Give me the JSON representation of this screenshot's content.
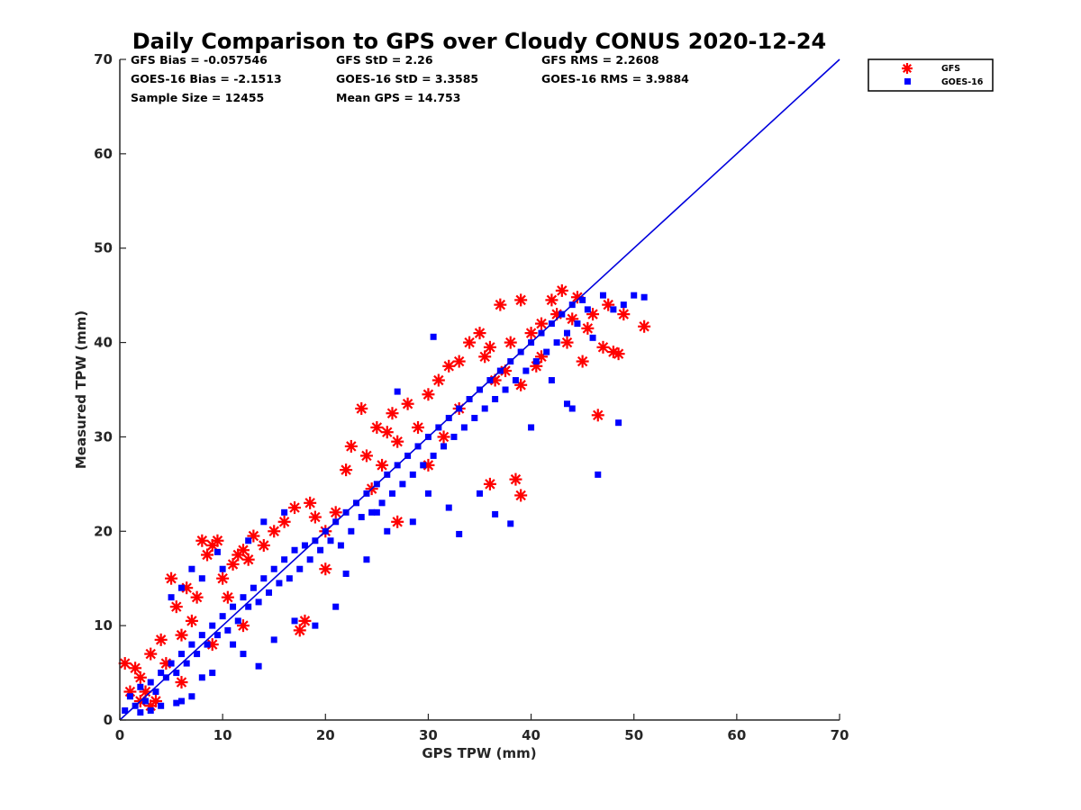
{
  "chart_data": {
    "type": "scatter",
    "title": "Daily Comparison to GPS over Cloudy CONUS 2020-12-24",
    "xlabel": "GPS TPW (mm)",
    "ylabel": "Measured TPW (mm)",
    "xlim": [
      0,
      70
    ],
    "ylim": [
      0,
      70
    ],
    "xticks": [
      "0",
      "10",
      "20",
      "30",
      "40",
      "50",
      "60",
      "70"
    ],
    "yticks": [
      "0",
      "10",
      "20",
      "30",
      "40",
      "50",
      "60",
      "70"
    ],
    "grid": false,
    "legend_position": "outside top-right",
    "stats": [
      "GFS Bias = -0.057546",
      "GFS StD = 2.26",
      "GFS RMS = 2.2608",
      "GOES-16 Bias = -2.1513",
      "GOES-16 StD = 3.3585",
      "GOES-16 RMS = 3.9884",
      "Sample Size = 12455",
      "Mean GPS = 14.753"
    ],
    "reference_line": {
      "x": [
        0,
        70
      ],
      "y": [
        0,
        70
      ],
      "color": "#0000dd"
    },
    "series": [
      {
        "name": "GFS",
        "marker": "asterisk",
        "color": "#ff0000",
        "points": [
          [
            0.5,
            6.0
          ],
          [
            1.0,
            3.0
          ],
          [
            1.5,
            5.5
          ],
          [
            2.0,
            4.5
          ],
          [
            2.5,
            3.0
          ],
          [
            3.0,
            7.0
          ],
          [
            3.5,
            2.0
          ],
          [
            4.0,
            8.5
          ],
          [
            4.5,
            6.0
          ],
          [
            5.0,
            15.0
          ],
          [
            5.5,
            12.0
          ],
          [
            6.0,
            9.0
          ],
          [
            6.5,
            14.0
          ],
          [
            7.0,
            10.5
          ],
          [
            7.5,
            13.0
          ],
          [
            8.0,
            19.0
          ],
          [
            8.5,
            17.5
          ],
          [
            9.0,
            18.5
          ],
          [
            9.5,
            19.0
          ],
          [
            10.0,
            15.0
          ],
          [
            10.5,
            13.0
          ],
          [
            11.0,
            16.5
          ],
          [
            11.5,
            17.5
          ],
          [
            12.0,
            18.0
          ],
          [
            12.5,
            17.0
          ],
          [
            13.0,
            19.5
          ],
          [
            14.0,
            18.5
          ],
          [
            15.0,
            20.0
          ],
          [
            16.0,
            21.0
          ],
          [
            17.0,
            22.5
          ],
          [
            17.5,
            9.5
          ],
          [
            18.0,
            10.5
          ],
          [
            18.5,
            23.0
          ],
          [
            19.0,
            21.5
          ],
          [
            20.0,
            20.0
          ],
          [
            21.0,
            22.0
          ],
          [
            22.0,
            26.5
          ],
          [
            22.5,
            29.0
          ],
          [
            23.5,
            33.0
          ],
          [
            24.0,
            28.0
          ],
          [
            24.5,
            24.5
          ],
          [
            25.0,
            31.0
          ],
          [
            25.5,
            27.0
          ],
          [
            26.0,
            30.5
          ],
          [
            26.5,
            32.5
          ],
          [
            27.0,
            29.5
          ],
          [
            28.0,
            33.5
          ],
          [
            29.0,
            31.0
          ],
          [
            30.0,
            34.5
          ],
          [
            31.0,
            36.0
          ],
          [
            31.5,
            30.0
          ],
          [
            32.0,
            37.5
          ],
          [
            33.0,
            38.0
          ],
          [
            34.0,
            40.0
          ],
          [
            35.0,
            41.0
          ],
          [
            35.5,
            38.5
          ],
          [
            36.0,
            39.5
          ],
          [
            36.5,
            36.0
          ],
          [
            37.0,
            44.0
          ],
          [
            37.5,
            37.0
          ],
          [
            38.0,
            40.0
          ],
          [
            38.5,
            25.5
          ],
          [
            39.0,
            44.5
          ],
          [
            39.0,
            23.8
          ],
          [
            40.0,
            41.0
          ],
          [
            40.5,
            37.5
          ],
          [
            41.0,
            42.0
          ],
          [
            42.0,
            44.5
          ],
          [
            42.5,
            43.0
          ],
          [
            43.0,
            45.5
          ],
          [
            43.5,
            40.0
          ],
          [
            44.0,
            42.5
          ],
          [
            44.5,
            44.8
          ],
          [
            45.0,
            38.0
          ],
          [
            45.5,
            41.5
          ],
          [
            46.0,
            43.0
          ],
          [
            46.5,
            32.3
          ],
          [
            47.0,
            39.5
          ],
          [
            47.5,
            44.0
          ],
          [
            48.0,
            39.0
          ],
          [
            48.5,
            38.8
          ],
          [
            49.0,
            43.0
          ],
          [
            51.0,
            41.7
          ],
          [
            2.0,
            2.0
          ],
          [
            3.0,
            1.5
          ],
          [
            6.0,
            4.0
          ],
          [
            9.0,
            8.0
          ],
          [
            12.0,
            10.0
          ],
          [
            20.0,
            16.0
          ],
          [
            27.0,
            21.0
          ],
          [
            30.0,
            27.0
          ],
          [
            33.0,
            33.0
          ],
          [
            36.0,
            25.0
          ],
          [
            39.0,
            35.5
          ],
          [
            41.0,
            38.5
          ]
        ]
      },
      {
        "name": "GOES-16",
        "marker": "square",
        "color": "#0000ff",
        "points": [
          [
            0.5,
            1.0
          ],
          [
            1.0,
            2.5
          ],
          [
            1.5,
            1.5
          ],
          [
            2.0,
            3.5
          ],
          [
            2.5,
            2.0
          ],
          [
            3.0,
            4.0
          ],
          [
            3.5,
            3.0
          ],
          [
            4.0,
            5.0
          ],
          [
            4.5,
            4.5
          ],
          [
            5.0,
            6.0
          ],
          [
            5.5,
            5.0
          ],
          [
            6.0,
            7.0
          ],
          [
            6.5,
            6.0
          ],
          [
            7.0,
            8.0
          ],
          [
            7.5,
            7.0
          ],
          [
            8.0,
            9.0
          ],
          [
            8.5,
            8.0
          ],
          [
            9.0,
            10.0
          ],
          [
            9.5,
            9.0
          ],
          [
            10.0,
            11.0
          ],
          [
            10.5,
            9.5
          ],
          [
            11.0,
            12.0
          ],
          [
            11.5,
            10.5
          ],
          [
            12.0,
            13.0
          ],
          [
            12.5,
            12.0
          ],
          [
            13.0,
            14.0
          ],
          [
            13.5,
            12.5
          ],
          [
            14.0,
            15.0
          ],
          [
            14.5,
            13.5
          ],
          [
            15.0,
            16.0
          ],
          [
            15.5,
            14.5
          ],
          [
            16.0,
            17.0
          ],
          [
            16.5,
            15.0
          ],
          [
            17.0,
            18.0
          ],
          [
            17.5,
            16.0
          ],
          [
            18.0,
            18.5
          ],
          [
            18.5,
            17.0
          ],
          [
            19.0,
            19.0
          ],
          [
            19.5,
            18.0
          ],
          [
            20.0,
            20.0
          ],
          [
            20.5,
            19.0
          ],
          [
            21.0,
            21.0
          ],
          [
            21.5,
            18.5
          ],
          [
            22.0,
            22.0
          ],
          [
            22.5,
            20.0
          ],
          [
            23.0,
            23.0
          ],
          [
            23.5,
            21.5
          ],
          [
            24.0,
            24.0
          ],
          [
            24.5,
            22.0
          ],
          [
            25.0,
            25.0
          ],
          [
            25.5,
            23.0
          ],
          [
            26.0,
            26.0
          ],
          [
            26.5,
            24.0
          ],
          [
            27.0,
            27.0
          ],
          [
            27.5,
            25.0
          ],
          [
            28.0,
            28.0
          ],
          [
            28.5,
            26.0
          ],
          [
            29.0,
            29.0
          ],
          [
            29.5,
            27.0
          ],
          [
            30.0,
            30.0
          ],
          [
            30.5,
            28.0
          ],
          [
            31.0,
            31.0
          ],
          [
            31.5,
            29.0
          ],
          [
            32.0,
            32.0
          ],
          [
            32.5,
            30.0
          ],
          [
            33.0,
            33.0
          ],
          [
            33.5,
            31.0
          ],
          [
            34.0,
            34.0
          ],
          [
            34.5,
            32.0
          ],
          [
            35.0,
            35.0
          ],
          [
            35.5,
            33.0
          ],
          [
            36.0,
            36.0
          ],
          [
            36.5,
            34.0
          ],
          [
            37.0,
            37.0
          ],
          [
            37.5,
            35.0
          ],
          [
            38.0,
            38.0
          ],
          [
            38.5,
            36.0
          ],
          [
            39.0,
            39.0
          ],
          [
            39.5,
            37.0
          ],
          [
            40.0,
            40.0
          ],
          [
            40.5,
            38.0
          ],
          [
            41.0,
            41.0
          ],
          [
            41.5,
            39.0
          ],
          [
            42.0,
            42.0
          ],
          [
            42.5,
            40.0
          ],
          [
            43.0,
            43.0
          ],
          [
            43.5,
            41.0
          ],
          [
            44.0,
            44.0
          ],
          [
            44.5,
            42.0
          ],
          [
            45.0,
            44.5
          ],
          [
            45.5,
            43.5
          ],
          [
            46.0,
            40.5
          ],
          [
            46.5,
            26.0
          ],
          [
            47.0,
            45.0
          ],
          [
            48.0,
            43.5
          ],
          [
            49.0,
            44.0
          ],
          [
            50.0,
            45.0
          ],
          [
            51.0,
            44.8
          ],
          [
            48.5,
            31.5
          ],
          [
            44.0,
            33.0
          ],
          [
            42.0,
            36.0
          ],
          [
            40.0,
            31.0
          ],
          [
            38.0,
            20.8
          ],
          [
            36.5,
            21.8
          ],
          [
            35.0,
            24.0
          ],
          [
            33.0,
            19.7
          ],
          [
            32.0,
            22.5
          ],
          [
            30.5,
            40.6
          ],
          [
            30.0,
            24.0
          ],
          [
            28.5,
            21.0
          ],
          [
            27.0,
            34.8
          ],
          [
            26.0,
            20.0
          ],
          [
            25.0,
            22.0
          ],
          [
            24.0,
            17.0
          ],
          [
            22.0,
            15.5
          ],
          [
            21.0,
            12.0
          ],
          [
            19.0,
            10.0
          ],
          [
            17.0,
            10.5
          ],
          [
            15.0,
            8.5
          ],
          [
            13.5,
            5.7
          ],
          [
            12.0,
            7.0
          ],
          [
            11.0,
            8.0
          ],
          [
            9.0,
            5.0
          ],
          [
            8.0,
            4.5
          ],
          [
            7.0,
            2.5
          ],
          [
            6.0,
            2.0
          ],
          [
            5.5,
            1.8
          ],
          [
            4.0,
            1.5
          ],
          [
            3.0,
            1.0
          ],
          [
            2.0,
            0.8
          ],
          [
            10.0,
            16.0
          ],
          [
            9.5,
            17.8
          ],
          [
            8.0,
            15.0
          ],
          [
            7.0,
            16.0
          ],
          [
            6.0,
            14.0
          ],
          [
            5.0,
            13.0
          ],
          [
            12.5,
            19.0
          ],
          [
            14.0,
            21.0
          ],
          [
            16.0,
            22.0
          ],
          [
            43.5,
            33.5
          ]
        ]
      }
    ]
  }
}
